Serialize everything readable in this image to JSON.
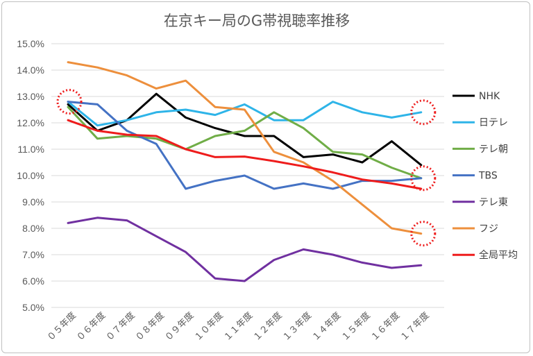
{
  "chart_data": {
    "type": "line",
    "title": "在京キー局のG帯視聴率推移",
    "categories": [
      "０５年度",
      "０６年度",
      "０７年度",
      "０８年度",
      "０９年度",
      "１０年度",
      "１１年度",
      "１２年度",
      "１３年度",
      "１４年度",
      "１５年度",
      "１６年度",
      "１７年度"
    ],
    "ylim": [
      5.0,
      15.0
    ],
    "yticks": [
      "15.0%",
      "14.0%",
      "13.0%",
      "12.0%",
      "11.0%",
      "10.0%",
      "9.0%",
      "8.0%",
      "7.0%",
      "6.0%",
      "5.0%"
    ],
    "ytick_values": [
      15,
      14,
      13,
      12,
      11,
      10,
      9,
      8,
      7,
      6,
      5
    ],
    "legend_position": "right",
    "grid": true,
    "series": [
      {
        "name": "NHK",
        "color": "#000000",
        "values": [
          12.7,
          11.7,
          12.1,
          13.1,
          12.2,
          11.8,
          11.5,
          11.5,
          10.7,
          10.8,
          10.5,
          11.3,
          10.4
        ]
      },
      {
        "name": "日テレ",
        "color": "#2eb4e8",
        "values": [
          12.8,
          11.9,
          12.1,
          12.4,
          12.5,
          12.3,
          12.7,
          12.1,
          12.1,
          12.8,
          12.4,
          12.2,
          12.4
        ]
      },
      {
        "name": "テレ朝",
        "color": "#70ad47",
        "values": [
          12.6,
          11.4,
          11.5,
          11.4,
          11.0,
          11.5,
          11.7,
          12.4,
          11.8,
          10.9,
          10.8,
          10.3,
          9.9
        ]
      },
      {
        "name": "TBS",
        "color": "#4472c4",
        "values": [
          12.8,
          12.7,
          11.7,
          11.2,
          9.5,
          9.8,
          10.0,
          9.5,
          9.7,
          9.5,
          9.8,
          9.8,
          9.9
        ]
      },
      {
        "name": "テレ東",
        "color": "#7030a0",
        "values": [
          8.2,
          8.4,
          8.3,
          7.7,
          7.1,
          6.1,
          6.0,
          6.8,
          7.2,
          7.0,
          6.7,
          6.5,
          6.6
        ]
      },
      {
        "name": "フジ",
        "color": "#ed8f3c",
        "values": [
          14.3,
          14.1,
          13.8,
          13.3,
          13.6,
          12.6,
          12.5,
          10.9,
          10.5,
          9.8,
          8.9,
          8.0,
          7.8
        ]
      },
      {
        "name": "全局平均",
        "color": "#ee1c1c",
        "values": [
          12.1,
          11.7,
          11.55,
          11.5,
          11.0,
          10.7,
          10.72,
          10.55,
          10.35,
          10.12,
          9.85,
          9.7,
          9.5
        ]
      }
    ],
    "annotations": [
      {
        "shape": "dotted-circle",
        "color": "#ee1c1c",
        "category": "０５年度",
        "value": 12.8
      },
      {
        "shape": "dotted-circle",
        "color": "#ee1c1c",
        "category": "１７年度",
        "value": 12.4
      },
      {
        "shape": "dotted-circle",
        "color": "#ee1c1c",
        "category": "１７年度",
        "value": 9.9
      },
      {
        "shape": "dotted-circle",
        "color": "#ee1c1c",
        "category": "１７年度",
        "value": 7.8
      }
    ]
  }
}
